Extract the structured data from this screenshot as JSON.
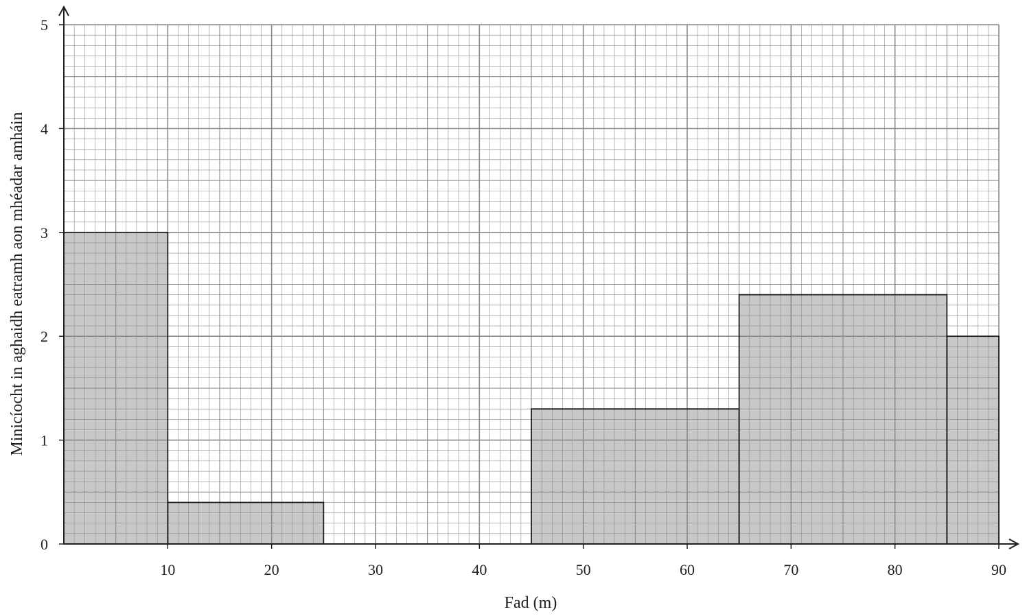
{
  "chart_data": {
    "type": "bar",
    "subtype": "histogram",
    "title": "",
    "xlabel": "Fad (m)",
    "ylabel": "Minicíocht in aghaidh eatramh aon mhéadar amháin",
    "xlim": [
      0,
      90
    ],
    "ylim": [
      0,
      5
    ],
    "x_ticks": [
      "10",
      "20",
      "30",
      "40",
      "50",
      "60",
      "70",
      "80",
      "90"
    ],
    "y_ticks": [
      "0",
      "1",
      "2",
      "3",
      "4",
      "5"
    ],
    "grid": true,
    "bins": [
      {
        "start": 0,
        "end": 10,
        "value": 3
      },
      {
        "start": 10,
        "end": 25,
        "value": 0.4
      },
      {
        "start": 25,
        "end": 45,
        "value": 0
      },
      {
        "start": 45,
        "end": 65,
        "value": 1.3
      },
      {
        "start": 65,
        "end": 85,
        "value": 2.4
      },
      {
        "start": 85,
        "end": 90,
        "value": 2
      }
    ],
    "colors": {
      "bar_fill": "#c8c8c8",
      "grid": "#8a8a8a",
      "axis": "#231f20"
    }
  }
}
